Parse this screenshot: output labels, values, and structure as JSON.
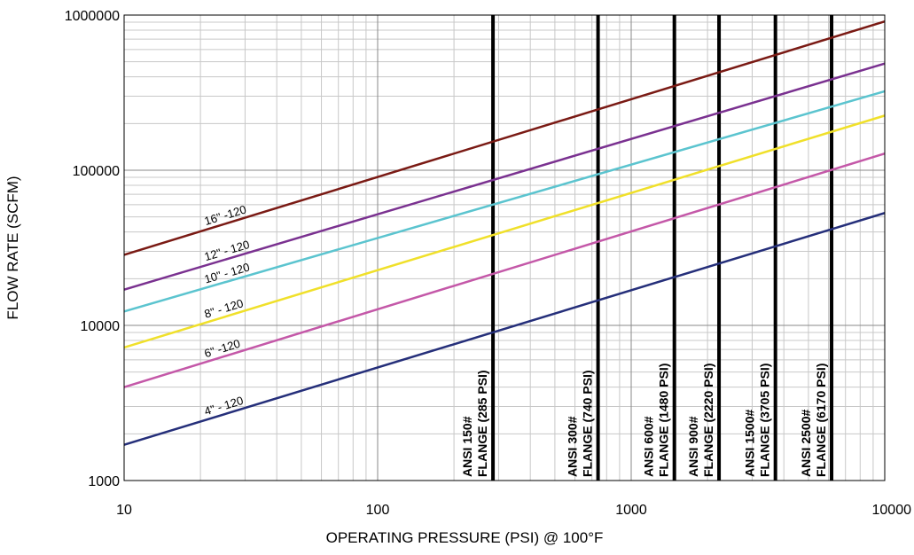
{
  "chart_data": {
    "type": "line",
    "x_scale": "log",
    "y_scale": "log",
    "xlim": [
      10,
      10000
    ],
    "ylim": [
      1000,
      1000000
    ],
    "xlabel": "OPERATING PRESSURE (PSI) @ 100°F",
    "ylabel": "FLOW RATE (SCFM)",
    "x_ticks": [
      {
        "value": 10,
        "label": "10"
      },
      {
        "value": 100,
        "label": "100"
      },
      {
        "value": 1000,
        "label": "1000"
      },
      {
        "value": 10000,
        "label": "10000"
      }
    ],
    "y_ticks": [
      {
        "value": 1000,
        "label": "1000"
      },
      {
        "value": 10000,
        "label": "10000"
      },
      {
        "value": 100000,
        "label": "100000"
      },
      {
        "value": 1000000,
        "label": "1000000"
      }
    ],
    "grid": true,
    "series": [
      {
        "name": "16\" -120",
        "color": "#7a1a14",
        "x": [
          10,
          10000
        ],
        "y": [
          28500,
          910000
        ],
        "label_at_x": 21
      },
      {
        "name": "12\" - 120",
        "color": "#7a3190",
        "x": [
          10,
          10000
        ],
        "y": [
          17000,
          487000
        ],
        "label_at_x": 21
      },
      {
        "name": "10\" - 120",
        "color": "#5bc4cf",
        "x": [
          10,
          10000
        ],
        "y": [
          12300,
          323000
        ],
        "label_at_x": 21
      },
      {
        "name": "8\" - 120",
        "color": "#f0e02a",
        "x": [
          10,
          10000
        ],
        "y": [
          7200,
          225000
        ],
        "label_at_x": 21
      },
      {
        "name": "6\" -120",
        "color": "#c458a8",
        "x": [
          10,
          10000
        ],
        "y": [
          4000,
          128000
        ],
        "label_at_x": 21
      },
      {
        "name": "4\" - 120",
        "color": "#252f7a",
        "x": [
          10,
          10000
        ],
        "y": [
          1700,
          53000
        ],
        "label_at_x": 21
      }
    ],
    "flange_lines": [
      {
        "pressure": 285,
        "line1": "ANSI 150#",
        "line2": "FLANGE (285 PSI)"
      },
      {
        "pressure": 740,
        "line1": "ANSI 300#",
        "line2": "FLANGE (740 PSI)"
      },
      {
        "pressure": 1480,
        "line1": "ANSI 600#",
        "line2": "FLANGE (1480 PSI)"
      },
      {
        "pressure": 2220,
        "line1": "ANSI 900#",
        "line2": "FLANGE (2220 PSI)"
      },
      {
        "pressure": 3705,
        "line1": "ANSI 1500#",
        "line2": "FLANGE (3705 PSI)"
      },
      {
        "pressure": 6170,
        "line1": "ANSI 2500#",
        "line2": "FLANGE (6170 PSI)"
      }
    ]
  }
}
